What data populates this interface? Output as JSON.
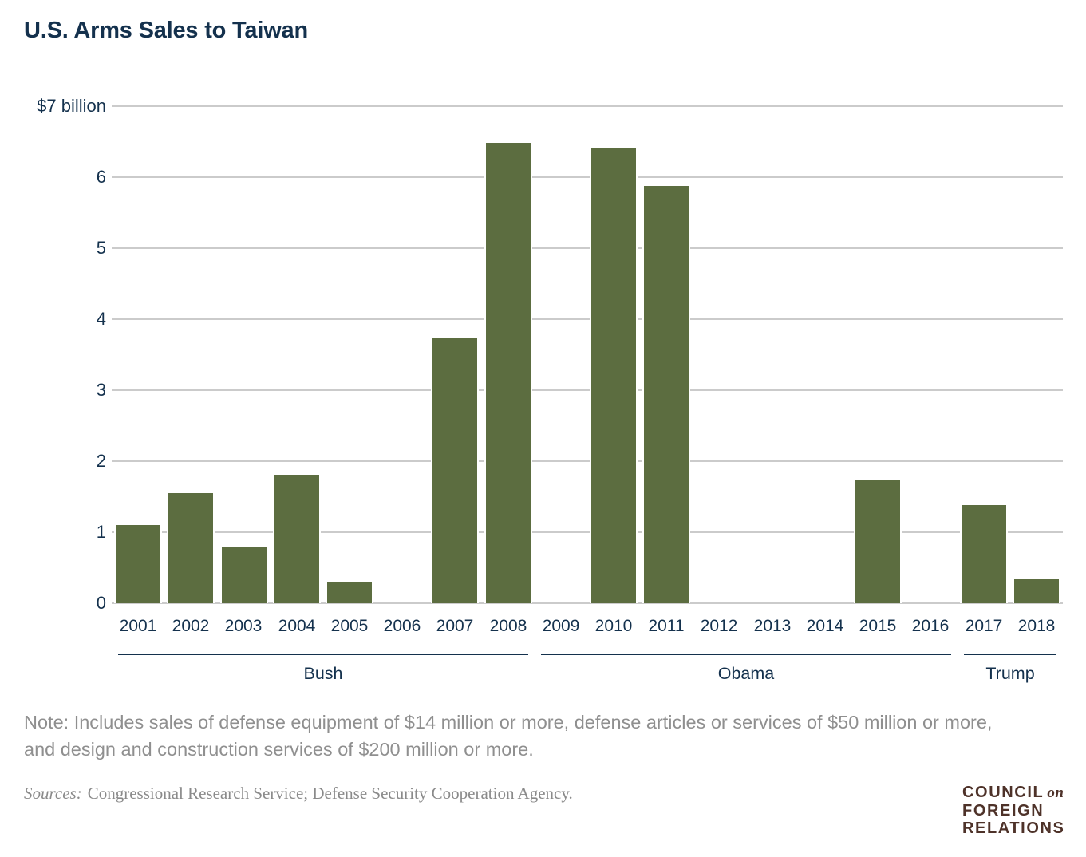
{
  "title": "U.S. Arms Sales to Taiwan",
  "chart_data": {
    "type": "bar",
    "title": "U.S. Arms Sales to Taiwan",
    "categories": [
      "2001",
      "2002",
      "2003",
      "2004",
      "2005",
      "2006",
      "2007",
      "2008",
      "2009",
      "2010",
      "2011",
      "2012",
      "2013",
      "2014",
      "2015",
      "2016",
      "2017",
      "2018"
    ],
    "values": [
      1.1,
      1.55,
      0.8,
      1.81,
      0.3,
      0,
      3.74,
      6.48,
      0,
      6.42,
      5.88,
      0,
      0,
      0,
      1.74,
      0,
      1.38,
      0.35
    ],
    "xlabel": "",
    "ylabel": "$ billion",
    "ylim": [
      0,
      7
    ],
    "yticks": [
      0,
      1,
      2,
      3,
      4,
      5,
      6,
      7
    ],
    "ytick_labels": [
      "0",
      "1",
      "2",
      "3",
      "4",
      "5",
      "6",
      "$7 billion"
    ],
    "grid": true,
    "legend": "none",
    "bar_color": "#5c6d40",
    "groups": [
      {
        "label": "Bush",
        "start": "2001",
        "end": "2008"
      },
      {
        "label": "Obama",
        "start": "2009",
        "end": "2016"
      },
      {
        "label": "Trump",
        "start": "2017",
        "end": "2018"
      }
    ]
  },
  "note": "Note: Includes sales of defense equipment of $14 million or more, defense articles or services of $50 million or more, and design and construction services of $200 million or more.",
  "sources": {
    "label": "Sources:",
    "text": "Congressional Research Service; Defense Security Cooperation Agency."
  },
  "logo": {
    "council": "COUNCIL",
    "on": "on",
    "foreign": "FOREIGN",
    "relations": "RELATIONS"
  },
  "colors": {
    "navy": "#14314d",
    "bar_green": "#5c6d40",
    "grid_gray": "#cbcbcb",
    "note_gray": "#8f8f8f",
    "logo_brown": "#4e3229"
  }
}
